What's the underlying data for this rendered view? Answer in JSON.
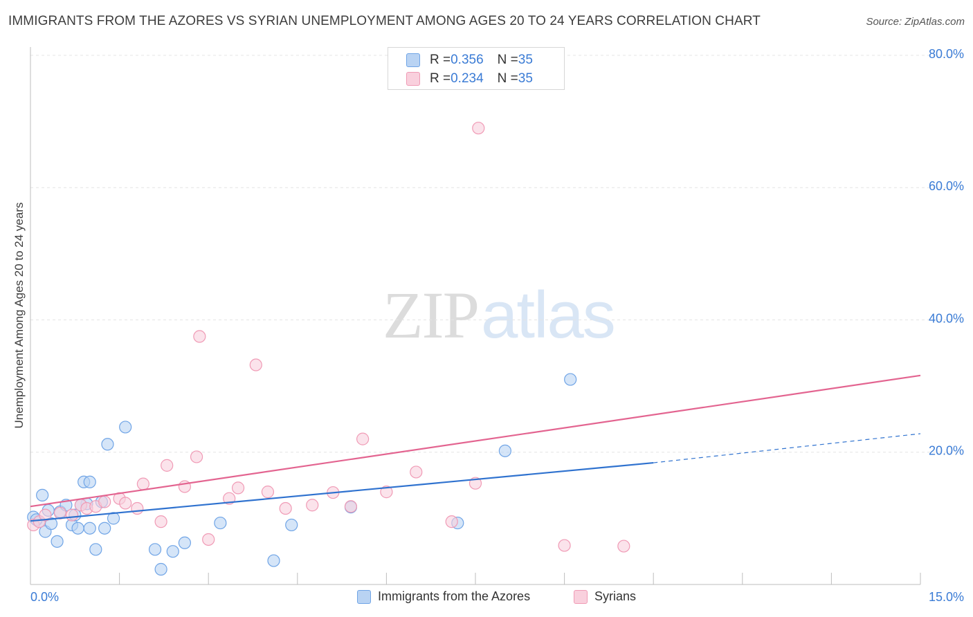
{
  "chart_data": {
    "type": "scatter",
    "title": "IMMIGRANTS FROM THE AZORES VS SYRIAN UNEMPLOYMENT AMONG AGES 20 TO 24 YEARS CORRELATION CHART",
    "source": "Source: ZipAtlas.com",
    "xlabel": "",
    "ylabel": "Unemployment Among Ages 20 to 24 years",
    "xlim": [
      0,
      15
    ],
    "ylim": [
      0,
      80
    ],
    "x_tick_labels": [
      "0.0%",
      "15.0%"
    ],
    "y_tick_labels": [
      "20.0%",
      "40.0%",
      "60.0%",
      "80.0%"
    ],
    "y_ticks": [
      20,
      40,
      60,
      80
    ],
    "watermark": {
      "zip": "ZIP",
      "atlas": "atlas"
    },
    "legend_top": [
      {
        "r_label": "R = ",
        "r_value": "0.356",
        "n_label": "N = ",
        "n_value": "35"
      },
      {
        "r_label": "R = ",
        "r_value": "0.234",
        "n_label": "N = ",
        "n_value": "35"
      }
    ],
    "series": [
      {
        "name": "Immigrants from the Azores",
        "color": "#6fa4e6",
        "fill": "#b9d3f3",
        "line_color": "#2f72cf",
        "trend": {
          "x0": 0,
          "y0": 9.6,
          "x1": 10.5,
          "y1": 18.4,
          "dash_x1": 15,
          "dash_y1": 22.8
        },
        "points": [
          [
            0.05,
            10.2
          ],
          [
            0.15,
            9.5
          ],
          [
            0.2,
            13.5
          ],
          [
            0.25,
            8.0
          ],
          [
            0.3,
            11.2
          ],
          [
            0.35,
            9.2
          ],
          [
            0.45,
            6.5
          ],
          [
            0.5,
            11.0
          ],
          [
            0.6,
            12.0
          ],
          [
            0.7,
            9.0
          ],
          [
            0.75,
            10.5
          ],
          [
            0.8,
            8.5
          ],
          [
            0.9,
            15.5
          ],
          [
            1.0,
            15.5
          ],
          [
            1.1,
            5.3
          ],
          [
            1.2,
            12.5
          ],
          [
            1.25,
            8.5
          ],
          [
            0.95,
            12.2
          ],
          [
            1.3,
            21.2
          ],
          [
            1.4,
            10.0
          ],
          [
            1.6,
            23.8
          ],
          [
            2.1,
            5.3
          ],
          [
            2.2,
            2.3
          ],
          [
            2.4,
            5.0
          ],
          [
            2.6,
            6.3
          ],
          [
            3.2,
            9.3
          ],
          [
            4.1,
            3.6
          ],
          [
            4.4,
            9.0
          ],
          [
            5.4,
            11.7
          ],
          [
            7.2,
            9.3
          ],
          [
            8.0,
            20.2
          ],
          [
            9.1,
            31.0
          ],
          [
            0.1,
            9.8
          ],
          [
            1.0,
            8.5
          ],
          [
            0.85,
            12.0
          ]
        ]
      },
      {
        "name": "Syrians",
        "color": "#f09ab5",
        "fill": "#f9d0dd",
        "line_color": "#e36490",
        "trend": {
          "x0": 0,
          "y0": 11.8,
          "x1": 15,
          "y1": 31.6
        },
        "points": [
          [
            0.05,
            9.0
          ],
          [
            0.15,
            9.5
          ],
          [
            0.25,
            10.5
          ],
          [
            0.5,
            10.8
          ],
          [
            0.7,
            10.5
          ],
          [
            0.85,
            12.0
          ],
          [
            0.95,
            11.5
          ],
          [
            1.1,
            11.8
          ],
          [
            1.25,
            12.5
          ],
          [
            1.5,
            13.0
          ],
          [
            1.6,
            12.3
          ],
          [
            1.8,
            11.5
          ],
          [
            1.9,
            15.2
          ],
          [
            2.2,
            9.5
          ],
          [
            2.3,
            18.0
          ],
          [
            2.6,
            14.8
          ],
          [
            2.8,
            19.3
          ],
          [
            2.85,
            37.5
          ],
          [
            3.0,
            6.8
          ],
          [
            3.35,
            13.0
          ],
          [
            3.5,
            14.6
          ],
          [
            3.8,
            33.2
          ],
          [
            4.0,
            14.0
          ],
          [
            4.3,
            11.5
          ],
          [
            4.75,
            12.0
          ],
          [
            5.1,
            13.9
          ],
          [
            5.4,
            11.8
          ],
          [
            5.6,
            22.0
          ],
          [
            6.0,
            14.0
          ],
          [
            6.5,
            17.0
          ],
          [
            7.1,
            9.5
          ],
          [
            7.5,
            15.3
          ],
          [
            7.55,
            69.0
          ],
          [
            9.0,
            5.9
          ],
          [
            10.0,
            5.8
          ]
        ]
      }
    ]
  }
}
